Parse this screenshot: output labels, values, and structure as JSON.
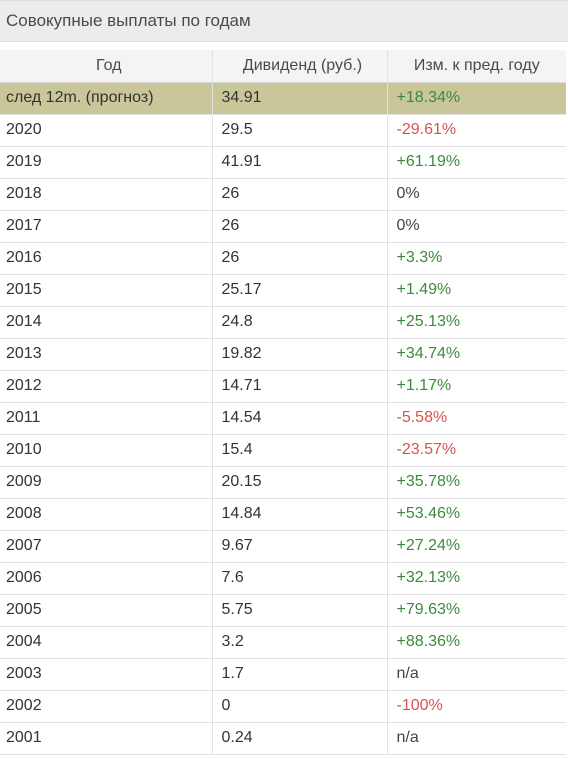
{
  "title": "Совокупные выплаты по годам",
  "columns": [
    "Год",
    "Дивиденд (руб.)",
    "Изм. к пред. году"
  ],
  "colors": {
    "positive": "#3d8a3d",
    "negative": "#d9534f",
    "neutral": "#444444",
    "highlight_row": "#c9c69a"
  },
  "rows": [
    {
      "year": "след 12m. (прогноз)",
      "dividend": "34.91",
      "change": "+18.34%",
      "trend": "pos",
      "highlight": true
    },
    {
      "year": "2020",
      "dividend": "29.5",
      "change": "-29.61%",
      "trend": "neg"
    },
    {
      "year": "2019",
      "dividend": "41.91",
      "change": "+61.19%",
      "trend": "pos"
    },
    {
      "year": "2018",
      "dividend": "26",
      "change": "0%",
      "trend": "neu"
    },
    {
      "year": "2017",
      "dividend": "26",
      "change": "0%",
      "trend": "neu"
    },
    {
      "year": "2016",
      "dividend": "26",
      "change": "+3.3%",
      "trend": "pos"
    },
    {
      "year": "2015",
      "dividend": "25.17",
      "change": "+1.49%",
      "trend": "pos"
    },
    {
      "year": "2014",
      "dividend": "24.8",
      "change": "+25.13%",
      "trend": "pos"
    },
    {
      "year": "2013",
      "dividend": "19.82",
      "change": "+34.74%",
      "trend": "pos"
    },
    {
      "year": "2012",
      "dividend": "14.71",
      "change": "+1.17%",
      "trend": "pos"
    },
    {
      "year": "2011",
      "dividend": "14.54",
      "change": "-5.58%",
      "trend": "neg"
    },
    {
      "year": "2010",
      "dividend": "15.4",
      "change": "-23.57%",
      "trend": "neg"
    },
    {
      "year": "2009",
      "dividend": "20.15",
      "change": "+35.78%",
      "trend": "pos"
    },
    {
      "year": "2008",
      "dividend": "14.84",
      "change": "+53.46%",
      "trend": "pos"
    },
    {
      "year": "2007",
      "dividend": "9.67",
      "change": "+27.24%",
      "trend": "pos"
    },
    {
      "year": "2006",
      "dividend": "7.6",
      "change": "+32.13%",
      "trend": "pos"
    },
    {
      "year": "2005",
      "dividend": "5.75",
      "change": "+79.63%",
      "trend": "pos"
    },
    {
      "year": "2004",
      "dividend": "3.2",
      "change": "+88.36%",
      "trend": "pos"
    },
    {
      "year": "2003",
      "dividend": "1.7",
      "change": "n/a",
      "trend": "neu"
    },
    {
      "year": "2002",
      "dividend": "0",
      "change": "-100%",
      "trend": "neg"
    },
    {
      "year": "2001",
      "dividend": "0.24",
      "change": "n/a",
      "trend": "neu"
    }
  ]
}
